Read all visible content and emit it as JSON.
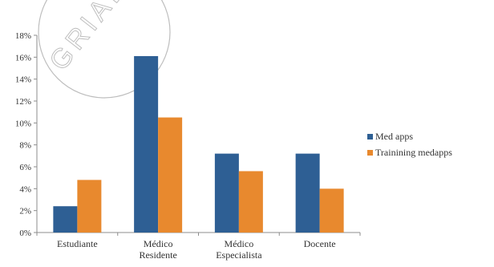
{
  "watermark": {
    "text": "GRIAL"
  },
  "chart_data": {
    "type": "bar",
    "categories": [
      "Estudiante",
      "Médico Residente",
      "Médico Especialista",
      "Docente"
    ],
    "category_lines": [
      [
        "Estudiante"
      ],
      [
        "Médico",
        "Residente"
      ],
      [
        "Médico",
        "Especialista"
      ],
      [
        "Docente"
      ]
    ],
    "series": [
      {
        "name": "Med apps",
        "values": [
          2.4,
          16.1,
          7.2,
          7.2
        ],
        "color": "#2e5f94"
      },
      {
        "name": "Trainining medapps",
        "values": [
          4.8,
          10.5,
          5.6,
          4.0
        ],
        "color": "#e8892e"
      }
    ],
    "yticks": [
      "0%",
      "2%",
      "4%",
      "6%",
      "8%",
      "10%",
      "12%",
      "14%",
      "16%",
      "18%"
    ],
    "ylim": [
      0,
      18
    ],
    "unit": "%",
    "grid": false,
    "legend_position": "right",
    "title": "",
    "xlabel": "",
    "ylabel": ""
  }
}
